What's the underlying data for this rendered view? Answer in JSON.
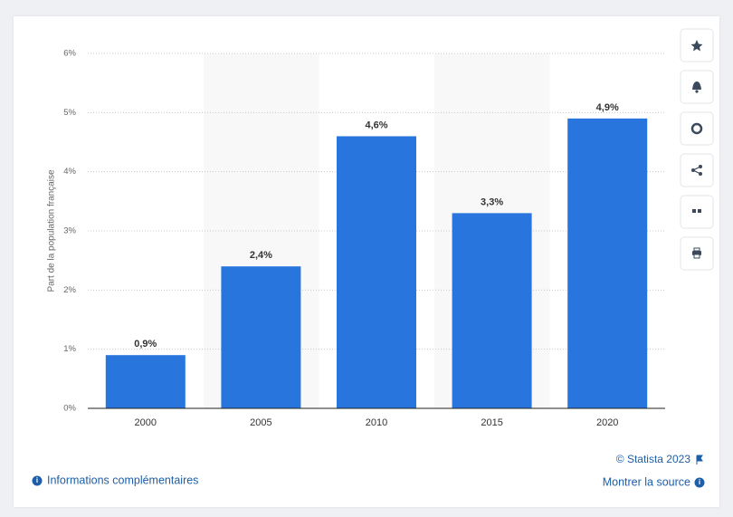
{
  "chart_data": {
    "type": "bar",
    "y_label": "Part de la population française",
    "categories": [
      "2000",
      "2005",
      "2010",
      "2015",
      "2020"
    ],
    "values": [
      0.9,
      2.4,
      4.6,
      3.3,
      4.9
    ],
    "value_labels": [
      "0,9%",
      "2,4%",
      "4,6%",
      "3,3%",
      "4,9%"
    ],
    "color": "#2876dd",
    "ylim": [
      0,
      6
    ],
    "yticks": [
      {
        "value": 0,
        "label": "0%"
      },
      {
        "value": 1,
        "label": "1%"
      },
      {
        "value": 2,
        "label": "2%"
      },
      {
        "value": 3,
        "label": "3%"
      },
      {
        "value": 4,
        "label": "4%"
      },
      {
        "value": 5,
        "label": "5%"
      },
      {
        "value": 6,
        "label": "6%"
      }
    ],
    "grid": true
  },
  "footer": {
    "copyright": "© Statista 2023",
    "info": "Informations complémentaires",
    "source": "Montrer la source"
  }
}
